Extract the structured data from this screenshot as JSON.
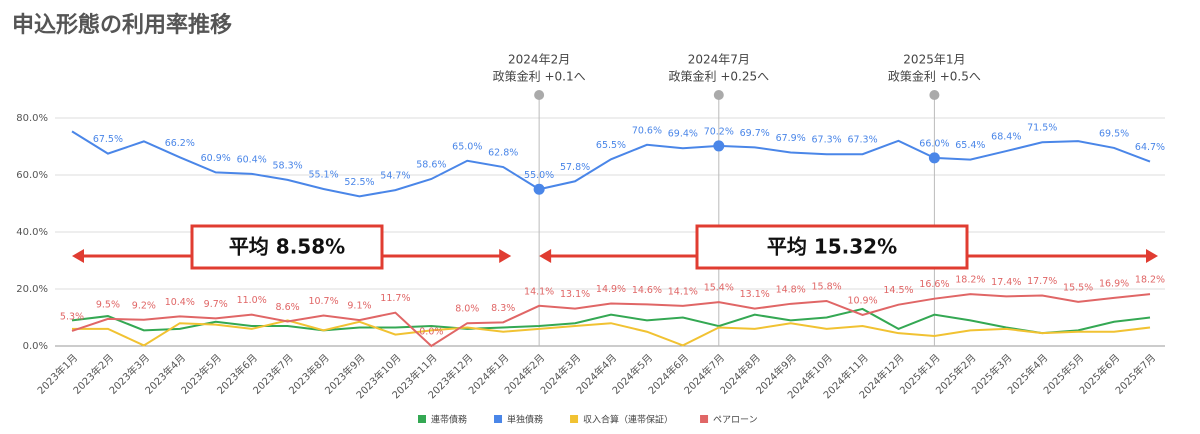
{
  "chart_data": {
    "type": "line",
    "title": "申込形態の利用率推移",
    "categories": [
      "2023年1月",
      "2023年2月",
      "2023年3月",
      "2023年4月",
      "2023年5月",
      "2023年6月",
      "2023年7月",
      "2023年8月",
      "2023年9月",
      "2023年10月",
      "2023年11月",
      "2023年12月",
      "2024年1月",
      "2024年2月",
      "2024年3月",
      "2024年4月",
      "2024年5月",
      "2024年6月",
      "2024年7月",
      "2024年8月",
      "2024年9月",
      "2024年10月",
      "2024年11月",
      "2024年12月",
      "2025年1月",
      "2025年2月",
      "2025年3月",
      "2025年4月",
      "2025年5月",
      "2025年6月",
      "2025年7月"
    ],
    "series": [
      {
        "name": "連帯債務",
        "color": "#34a853",
        "values": [
          9,
          10.5,
          5.5,
          6,
          8.5,
          7,
          7,
          5.5,
          6.5,
          6.5,
          7,
          6,
          6.5,
          7,
          8,
          11,
          9,
          10,
          7,
          11,
          9,
          10,
          13,
          6,
          11,
          9,
          6.5,
          4.5,
          5.5,
          8.5,
          10
        ]
      },
      {
        "name": "単独債務",
        "color": "#4a86e8",
        "values": [
          75.3,
          67.5,
          71.8,
          66.2,
          60.9,
          60.4,
          58.3,
          55.1,
          52.5,
          54.7,
          58.6,
          65.0,
          62.8,
          55.0,
          57.8,
          65.5,
          70.6,
          69.4,
          70.2,
          69.7,
          67.9,
          67.3,
          67.3,
          72.0,
          66.0,
          65.4,
          68.4,
          71.5,
          71.9,
          69.5,
          64.7
        ],
        "value_labels": [
          null,
          "67.5%",
          null,
          "66.2%",
          "60.9%",
          "60.4%",
          "58.3%",
          "55.1%",
          "52.5%",
          "54.7%",
          "58.6%",
          "65.0%",
          "62.8%",
          "55.0%",
          "57.8%",
          "65.5%",
          "70.6%",
          "69.4%",
          "70.2%",
          "69.7%",
          "67.9%",
          "67.3%",
          "67.3%",
          null,
          "66.0%",
          "65.4%",
          "68.4%",
          "71.5%",
          null,
          "69.5%",
          "64.7%"
        ]
      },
      {
        "name": "収入合算（連帯保証）",
        "color": "#f1c232",
        "values": [
          6,
          6,
          0.2,
          8,
          7.5,
          6,
          9,
          5.5,
          8.5,
          4,
          5.5,
          6.5,
          5,
          6,
          7,
          8,
          5,
          0.2,
          6.5,
          6,
          8,
          6,
          7,
          4.5,
          3.5,
          5.5,
          6,
          4.5,
          5,
          5,
          6.5
        ]
      },
      {
        "name": "ペアローン",
        "color": "#e06666",
        "values": [
          5.3,
          9.5,
          9.2,
          10.4,
          9.7,
          11.0,
          8.6,
          10.7,
          9.1,
          11.7,
          0.0,
          8.0,
          8.3,
          14.1,
          13.1,
          14.9,
          14.6,
          14.1,
          15.4,
          13.1,
          14.8,
          15.8,
          10.9,
          14.5,
          16.6,
          18.2,
          17.4,
          17.7,
          15.5,
          16.9,
          18.2
        ],
        "value_labels": [
          "5.3%",
          "9.5%",
          "9.2%",
          "10.4%",
          "9.7%",
          "11.0%",
          "8.6%",
          "10.7%",
          "9.1%",
          "11.7%",
          "0.0%",
          "8.0%",
          "8.3%",
          "14.1%",
          "13.1%",
          "14.9%",
          "14.6%",
          "14.1%",
          "15.4%",
          "13.1%",
          "14.8%",
          "15.8%",
          "10.9%",
          "14.5%",
          "16.6%",
          "18.2%",
          "17.4%",
          "17.7%",
          "15.5%",
          "16.9%",
          "18.2%"
        ]
      }
    ],
    "ylim": [
      0,
      80
    ],
    "yticks": [
      {
        "value": 0,
        "label": "0.0%"
      },
      {
        "value": 20,
        "label": "20.0%"
      },
      {
        "value": 40,
        "label": "40.0%"
      },
      {
        "value": 60,
        "label": "60.0%"
      },
      {
        "value": 80,
        "label": "80.0%"
      }
    ],
    "grid": true,
    "events": [
      {
        "date": "2024年2月",
        "label": "政策金利 +0.1へ",
        "at": "2024年2月"
      },
      {
        "date": "2024年7月",
        "label": "政策金利 +0.25へ",
        "at": "2024年7月"
      },
      {
        "date": "2025年1月",
        "label": "政策金利 +0.5へ",
        "at": "2025年1月"
      }
    ],
    "averages": [
      {
        "label": "平均 8.58%",
        "from": "2023年1月",
        "to": "2024年1月"
      },
      {
        "label": "平均 15.32%",
        "from": "2024年2月",
        "to": "2025年7月"
      }
    ],
    "legend": "bottom"
  }
}
